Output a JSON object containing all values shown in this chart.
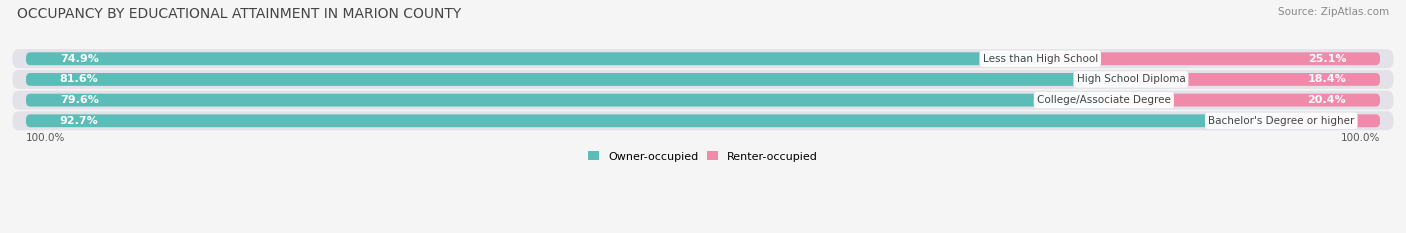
{
  "title": "OCCUPANCY BY EDUCATIONAL ATTAINMENT IN MARION COUNTY",
  "source": "Source: ZipAtlas.com",
  "categories": [
    "Less than High School",
    "High School Diploma",
    "College/Associate Degree",
    "Bachelor's Degree or higher"
  ],
  "owner_pct": [
    74.9,
    81.6,
    79.6,
    92.7
  ],
  "renter_pct": [
    25.1,
    18.4,
    20.4,
    7.3
  ],
  "owner_color": "#5bbcb8",
  "renter_color": "#f08aaa",
  "bg_row_color": "#e2e2e8",
  "title_fontsize": 10,
  "source_fontsize": 7.5,
  "label_fontsize": 7.5,
  "bar_label_fontsize": 8,
  "axis_label_fontsize": 7.5,
  "legend_fontsize": 8,
  "bar_height": 0.62,
  "axis_label_left": "100.0%",
  "axis_label_right": "100.0%",
  "background_color": "#f5f5f5",
  "text_color": "#555555",
  "title_color": "#444444",
  "label_color": "#444444"
}
